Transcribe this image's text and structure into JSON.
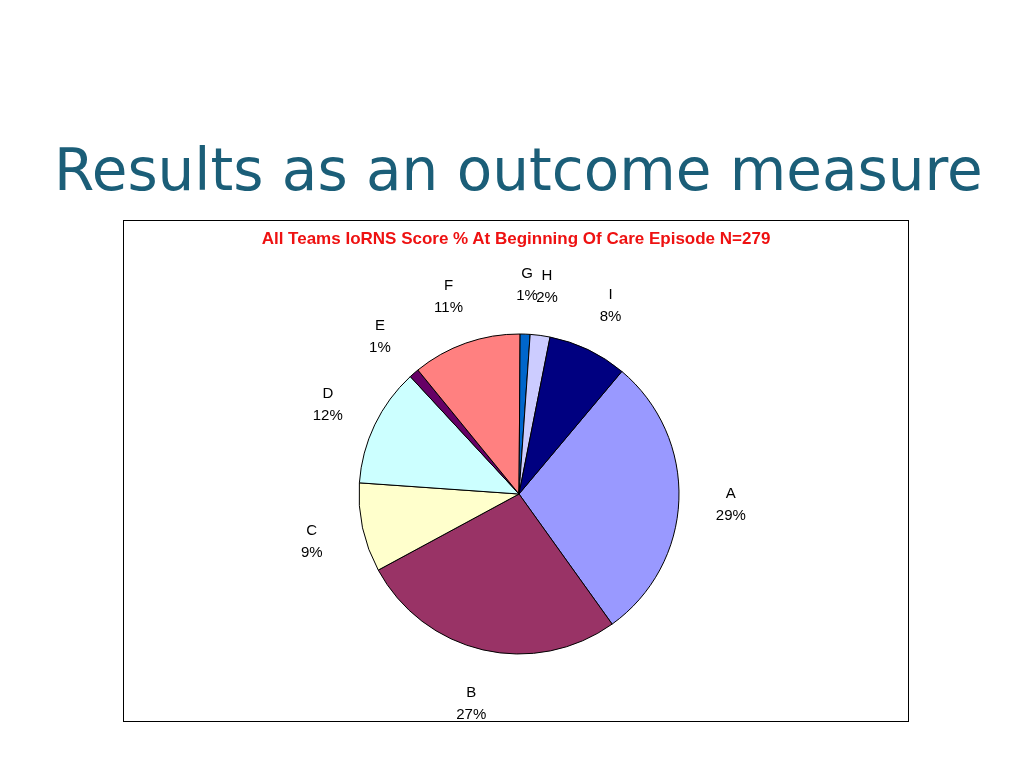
{
  "chart_data": {
    "type": "pie",
    "title": "Results as an outcome measure",
    "subtitle": "All Teams IoRNS Score % At Beginning Of Care Episode N=279",
    "categories": [
      "A",
      "B",
      "C",
      "D",
      "E",
      "F",
      "G",
      "H",
      "I"
    ],
    "values": [
      29,
      27,
      9,
      12,
      1,
      11,
      1,
      2,
      8
    ],
    "value_labels": [
      "29%",
      "27%",
      "9%",
      "12%",
      "1%",
      "11%",
      "1%",
      "2%",
      "8%"
    ],
    "colors": [
      "#9999ff",
      "#993366",
      "#ffffcc",
      "#ccffff",
      "#660066",
      "#ff8080",
      "#0066cc",
      "#ccccff",
      "#000080"
    ]
  }
}
